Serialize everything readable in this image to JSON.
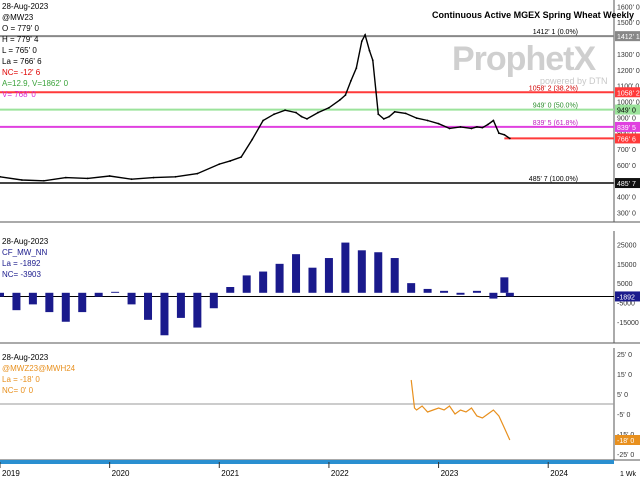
{
  "watermark": {
    "brand": "ProphetX",
    "tagline": "powered by DTN"
  },
  "time_axis": {
    "labels": [
      "2019",
      "2020",
      "2021",
      "2022",
      "2023",
      "2024"
    ],
    "corner_label": "1 Wk"
  },
  "chart_data": [
    {
      "type": "line",
      "title": "Continuous Active MGEX Spring Wheat Weekly",
      "legend": {
        "date": "28-Aug-2023",
        "symbol": "@MW23",
        "open": "O = 779' 0",
        "high": "H = 779' 4",
        "low": "L = 765' 0",
        "last": "La = 766' 6",
        "nc": "NC= -12' 6",
        "avg": "A=12.9, V=1862' 0",
        "v": "V= 768' 0"
      },
      "ylim": [
        240,
        1640
      ],
      "y_ticks": [
        300,
        400,
        500,
        600,
        700,
        800,
        900,
        1000,
        1100,
        1200,
        1300,
        1400,
        1500,
        1600
      ],
      "y_tick_labels": [
        "300' 0",
        "400' 0",
        "500' 0",
        "600' 0",
        "700' 0",
        "800' 0",
        "900' 0",
        "1000' 0",
        "1100' 0",
        "1200' 0",
        "1300' 0",
        "1400' 0",
        "1500' 0",
        "1600' 0"
      ],
      "x": [
        2019.0,
        2019.2,
        2019.4,
        2019.6,
        2019.8,
        2020.0,
        2020.2,
        2020.4,
        2020.6,
        2020.8,
        2021.0,
        2021.1,
        2021.2,
        2021.3,
        2021.4,
        2021.5,
        2021.6,
        2021.7,
        2021.75,
        2021.8,
        2021.9,
        2022.0,
        2022.1,
        2022.15,
        2022.2,
        2022.25,
        2022.3,
        2022.33,
        2022.37,
        2022.4,
        2022.45,
        2022.5,
        2022.55,
        2022.6,
        2022.7,
        2022.8,
        2022.9,
        2023.0,
        2023.1,
        2023.2,
        2023.3,
        2023.35,
        2023.4,
        2023.45,
        2023.5,
        2023.55,
        2023.6,
        2023.65
      ],
      "values": [
        525,
        505,
        500,
        520,
        515,
        530,
        510,
        520,
        525,
        545,
        605,
        625,
        650,
        760,
        880,
        920,
        945,
        930,
        905,
        890,
        930,
        960,
        1010,
        1040,
        1130,
        1210,
        1380,
        1420,
        1320,
        1260,
        920,
        890,
        905,
        935,
        925,
        895,
        880,
        860,
        830,
        840,
        830,
        840,
        835,
        855,
        880,
        800,
        790,
        767
      ],
      "levels": [
        {
          "value": 1412.1,
          "label": "1412' 1 (0.0%)",
          "tag": "1412' 1",
          "color": "#888888"
        },
        {
          "value": 1058.2,
          "label": "1058' 2 (38.2%)",
          "tag": "1058' 2",
          "color": "#ff3a3a"
        },
        {
          "value": 949.0,
          "label": "949' 0 (50.0%)",
          "tag": "949' 0",
          "color": "#9be39b"
        },
        {
          "value": 839.5,
          "label": "839' 5 (61.8%)",
          "tag": "839' 5",
          "color": "#e040e0"
        },
        {
          "value": 767.0,
          "label": "",
          "tag": "766' 6",
          "color": "#ff3a3a"
        },
        {
          "value": 485.7,
          "label": "485' 7 (100.0%)",
          "tag": "485' 7",
          "color": "#444444"
        }
      ]
    },
    {
      "type": "bar",
      "legend": {
        "date": "28-Aug-2023",
        "symbol": "CF_MW_NN",
        "last": "La = -1892",
        "nc": "NC= -3903"
      },
      "ylim": [
        -26000,
        32000
      ],
      "y_ticks": [
        -15000,
        -5000,
        5000,
        15000,
        25000
      ],
      "y_tick_labels": [
        "-15000",
        "-5000",
        "5000",
        "15000",
        "25000"
      ],
      "last_tag": "-1892",
      "x": [
        2019.0,
        2019.15,
        2019.3,
        2019.45,
        2019.6,
        2019.75,
        2019.9,
        2020.05,
        2020.2,
        2020.35,
        2020.5,
        2020.65,
        2020.8,
        2020.95,
        2021.1,
        2021.25,
        2021.4,
        2021.55,
        2021.7,
        2021.85,
        2022.0,
        2022.15,
        2022.3,
        2022.45,
        2022.6,
        2022.75,
        2022.9,
        2023.05,
        2023.2,
        2023.35,
        2023.5,
        2023.6,
        2023.65
      ],
      "values": [
        -2000,
        -9000,
        -6000,
        -10000,
        -15000,
        -10000,
        -2000,
        500,
        -6000,
        -14000,
        -22000,
        -13000,
        -18000,
        -8000,
        3000,
        9000,
        11000,
        15000,
        20000,
        13000,
        18000,
        26000,
        22000,
        21000,
        18000,
        5000,
        2000,
        1000,
        -1000,
        1000,
        -3000,
        8000,
        -1892
      ]
    },
    {
      "type": "line",
      "legend": {
        "date": "28-Aug-2023",
        "symbol": "@MWZ23@MWH24",
        "last": "La = -18' 0",
        "nc": "NC= 0' 0"
      },
      "ylim": [
        -28,
        28
      ],
      "y_ticks": [
        -25,
        -15,
        -5,
        5,
        15,
        25
      ],
      "y_tick_labels": [
        "-25' 0",
        "-15' 0",
        "-5' 0",
        "5' 0",
        "15' 0",
        "25' 0"
      ],
      "last_tag": "-18' 0",
      "x": [
        2022.75,
        2022.78,
        2022.8,
        2022.85,
        2022.9,
        2022.95,
        2023.0,
        2023.05,
        2023.1,
        2023.15,
        2023.2,
        2023.25,
        2023.3,
        2023.35,
        2023.4,
        2023.45,
        2023.5,
        2023.55,
        2023.6,
        2023.65
      ],
      "values": [
        12,
        -2,
        -3,
        -1,
        -4,
        -3,
        -2,
        -3,
        -1,
        -5,
        -3,
        -4,
        -2,
        -6,
        -7,
        -5,
        -3,
        -6,
        -12,
        -18
      ]
    }
  ]
}
